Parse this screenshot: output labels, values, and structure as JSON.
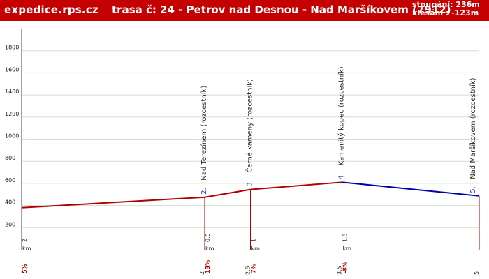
{
  "header": {
    "site": "expedice.rps.cz",
    "route_title": "trasa č: 24  -  Petrov nad Desnou - Nad Maršíkovem (7912)",
    "ascent": "stoupání: 236m",
    "descent": "klesání : -123m"
  },
  "chart_data": {
    "type": "line",
    "xlabel": "",
    "ylabel": "",
    "ylim": [
      0,
      2000
    ],
    "xlim": [
      0,
      5
    ],
    "y_ticks": [
      200,
      400,
      600,
      800,
      1000,
      1200,
      1400,
      1600,
      1800
    ],
    "grid": true,
    "profile": [
      {
        "x": 0,
        "y": 380
      },
      {
        "x": 2,
        "y": 475
      },
      {
        "x": 2.5,
        "y": 545
      },
      {
        "x": 3.5,
        "y": 610
      },
      {
        "x": 5,
        "y": 487
      }
    ],
    "segments": [
      {
        "from": 0,
        "to": 2,
        "dist_label": "2",
        "unit": "km",
        "grade": "5%",
        "color": "#b00000"
      },
      {
        "from": 2,
        "to": 2.5,
        "dist_label": "0.5",
        "unit": "km",
        "grade": "13%",
        "color": "#b00000"
      },
      {
        "from": 2.5,
        "to": 3.5,
        "dist_label": "1",
        "unit": "km",
        "grade": "7%",
        "color": "#b00000"
      },
      {
        "from": 3.5,
        "to": 5,
        "dist_label": "1.5",
        "unit": "km",
        "grade": "-8%",
        "color": "#0000aa"
      }
    ],
    "waypoints": [
      {
        "x": 2,
        "number": "2.",
        "name": "Nad Terezínem (rozcestník)",
        "cum_label": "2"
      },
      {
        "x": 2.5,
        "number": "3.",
        "name": "Černé kameny (rozcestník)",
        "cum_label": "2,5"
      },
      {
        "x": 3.5,
        "number": "4.",
        "name": "Kamenitý kopec (rozcestník)",
        "cum_label": "3,5"
      },
      {
        "x": 5,
        "number": "5.",
        "name": "Nad Maršíkovem (rozcestník)",
        "cum_label": "5"
      }
    ],
    "colors": {
      "climb": "#b00000",
      "descent": "#0000aa",
      "grid": "#cfe0cf",
      "number": "#1a3fbf",
      "axis_label": "#222222",
      "grade": "#b00000"
    }
  }
}
